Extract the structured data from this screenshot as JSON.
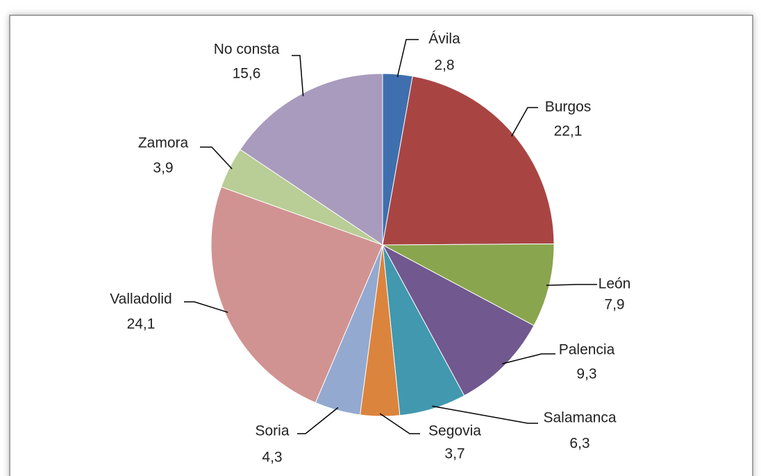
{
  "chart_data": {
    "type": "pie",
    "categories": [
      "Ávila",
      "Burgos",
      "León",
      "Palencia",
      "Salamanca",
      "Segovia",
      "Soria",
      "Valladolid",
      "Zamora",
      "No consta"
    ],
    "values": [
      2.8,
      22.1,
      7.9,
      9.3,
      6.3,
      3.7,
      4.3,
      24.1,
      3.9,
      15.6
    ],
    "value_labels": [
      "2,8",
      "22,1",
      "7,9",
      "9,3",
      "6,3",
      "3,7",
      "4,3",
      "24,1",
      "3,9",
      "15,6"
    ],
    "colors": [
      "#3f6fae",
      "#a84543",
      "#89a54e",
      "#71588f",
      "#4198af",
      "#db843d",
      "#93a9d0",
      "#d09392",
      "#b9cd96",
      "#a99bbd"
    ]
  }
}
